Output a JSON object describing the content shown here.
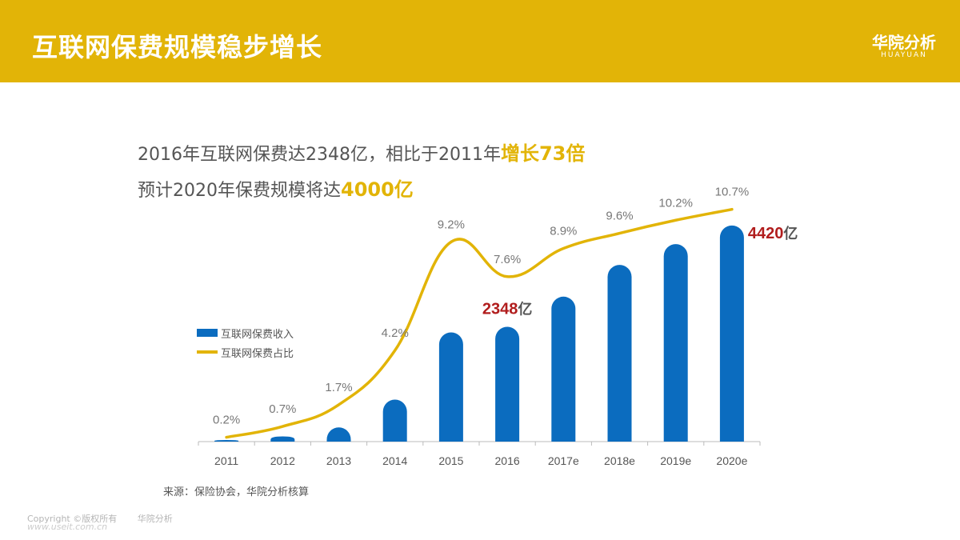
{
  "header": {
    "title": "互联网保费规模稳步增长",
    "brand": "华院分析",
    "brand_sub": "HUAYUAN"
  },
  "headline": {
    "line1_text": "2016年互联网保费达2348亿，相比于2011年",
    "line1_highlight": "增长73倍",
    "line2_text": "预计2020年保费规模将达",
    "line2_highlight": "4000亿"
  },
  "legend": {
    "bar_label": "互联网保费收入",
    "line_label": "互联网保费占比"
  },
  "chart_data": {
    "type": "bar",
    "categories": [
      "2011",
      "2012",
      "2013",
      "2014",
      "2015",
      "2016",
      "2017e",
      "2018e",
      "2019e",
      "2020e"
    ],
    "series": [
      {
        "name": "互联网保费收入",
        "type": "bar",
        "unit": "亿",
        "values": [
          32,
          106,
          291,
          859,
          2234,
          2348,
          2965,
          3615,
          4040,
          4420
        ],
        "highlight_labels": [
          {
            "category": "2016",
            "value": "2348",
            "unit": "亿"
          },
          {
            "category": "2020e",
            "value": "4420",
            "unit": "亿"
          }
        ]
      },
      {
        "name": "互联网保费占比",
        "type": "line",
        "values": [
          0.2,
          0.7,
          1.7,
          4.2,
          9.2,
          7.6,
          8.9,
          9.6,
          10.2,
          10.7
        ],
        "labels": [
          "0.2%",
          "0.7%",
          "1.7%",
          "4.2%",
          "9.2%",
          "7.6%",
          "8.9%",
          "9.6%",
          "10.2%",
          "10.7%"
        ]
      }
    ],
    "ylim_bar": [
      0,
      4500
    ],
    "ylim_line": [
      0,
      11.5
    ],
    "colors": {
      "bar": "#0b6cbf",
      "line": "#e2b407",
      "highlight": "#b11d1d",
      "label": "#777777"
    }
  },
  "source": "来源：保险协会，华院分析核算",
  "footer": {
    "copyright": "Copyright ©版权所有",
    "brand": "华院分析",
    "watermark": "www.useit.com.cn"
  }
}
